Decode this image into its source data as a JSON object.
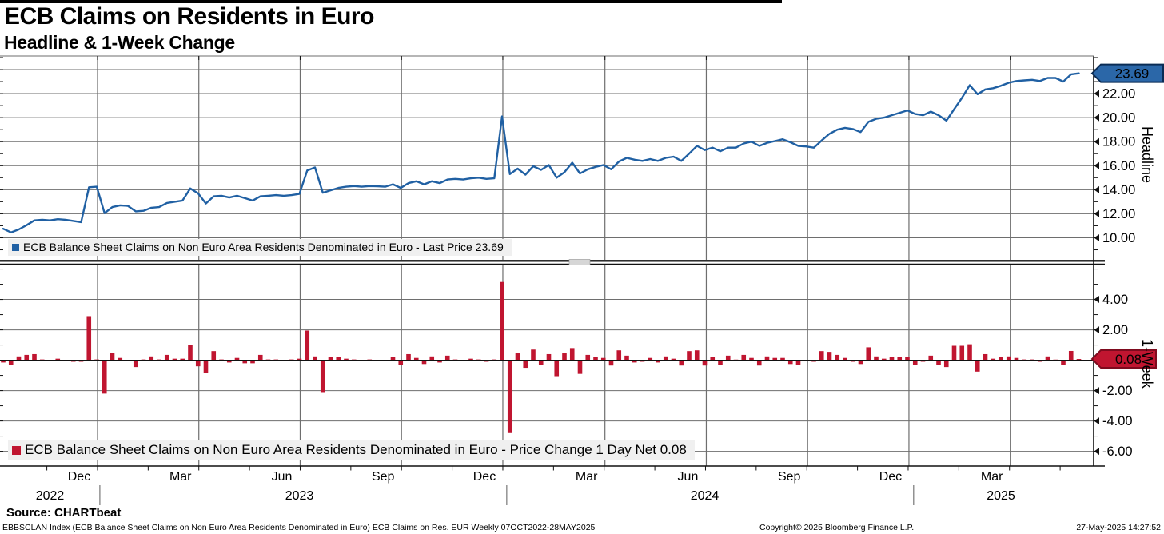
{
  "header": {
    "title": "ECB Claims on Residents in Euro",
    "subtitle": "Headline & 1-Week Change"
  },
  "chart_data": {
    "type": "line+bar",
    "frequency": "Weekly",
    "date_range": "07OCT2022-28MAY2025",
    "x": {
      "quarters": [
        {
          "label": "Dec",
          "week": 12.1
        },
        {
          "label": "Mar",
          "week": 25.1
        },
        {
          "label": "Jun",
          "week": 38.1
        },
        {
          "label": "Sep",
          "week": 51.1
        },
        {
          "label": "Dec",
          "week": 64.1
        },
        {
          "label": "Mar",
          "week": 77.2
        },
        {
          "label": "Jun",
          "week": 90.2
        },
        {
          "label": "Sep",
          "week": 103.2
        },
        {
          "label": "Dec",
          "week": 116.2
        },
        {
          "label": "Mar",
          "week": 129.2
        }
      ],
      "years": [
        {
          "label": "2022",
          "week": 6
        },
        {
          "label": "2023",
          "week": 38
        },
        {
          "label": "2024",
          "week": 90
        },
        {
          "label": "2025",
          "week": 128
        }
      ],
      "year_separators": [
        12.4,
        64.6,
        116.8
      ]
    },
    "panels": [
      {
        "axis_title": "Headline",
        "type": "line",
        "color": "#2060a3",
        "badge_color": "#2b67a8",
        "badge_border": "#0a2c55",
        "last_value_badge": "23.69",
        "legend": "ECB Balance Sheet Claims on Non Euro Area Residents Denominated in Euro - Last Price 23.69",
        "tick_values": [
          22,
          20,
          18,
          16,
          14,
          12,
          10
        ],
        "tick_labels": [
          "22.00",
          "20.00",
          "18.00",
          "16.00",
          "14.00",
          "12.00",
          "10.00"
        ],
        "ylim": [
          8.17,
          25.13
        ],
        "values": [
          10.75,
          10.45,
          10.7,
          11.05,
          11.45,
          11.5,
          11.45,
          11.55,
          11.5,
          11.4,
          11.3,
          14.2,
          14.25,
          12.05,
          12.55,
          12.7,
          12.65,
          12.2,
          12.25,
          12.5,
          12.55,
          12.9,
          13.0,
          13.1,
          14.1,
          13.7,
          12.85,
          13.45,
          13.5,
          13.35,
          13.5,
          13.3,
          13.1,
          13.45,
          13.5,
          13.55,
          13.5,
          13.55,
          13.65,
          15.6,
          15.85,
          13.75,
          13.95,
          14.15,
          14.25,
          14.3,
          14.25,
          14.3,
          14.28,
          14.25,
          14.45,
          14.15,
          14.55,
          14.7,
          14.45,
          14.7,
          14.55,
          14.85,
          14.9,
          14.85,
          14.95,
          15.0,
          14.9,
          14.95,
          20.1,
          15.3,
          15.75,
          15.25,
          15.95,
          15.65,
          16.05,
          15.0,
          15.45,
          16.25,
          15.35,
          15.7,
          15.9,
          16.05,
          15.7,
          16.35,
          16.65,
          16.5,
          16.4,
          16.55,
          16.4,
          16.65,
          16.75,
          16.4,
          17.0,
          17.65,
          17.3,
          17.5,
          17.2,
          17.5,
          17.5,
          17.85,
          18.0,
          17.65,
          17.9,
          18.05,
          18.2,
          17.95,
          17.65,
          17.6,
          17.5,
          18.1,
          18.65,
          19.0,
          19.15,
          19.05,
          18.8,
          19.65,
          19.9,
          20.0,
          20.2,
          20.4,
          20.6,
          20.3,
          20.2,
          20.5,
          20.2,
          19.75,
          20.7,
          21.65,
          22.7,
          21.95,
          22.35,
          22.45,
          22.65,
          22.9,
          23.05,
          23.1,
          23.15,
          23.05,
          23.3,
          23.3,
          23.0,
          23.61,
          23.69
        ]
      },
      {
        "axis_title": "1-Week",
        "type": "bar",
        "color": "#c01530",
        "badge_color": "#c01530",
        "badge_border": "#7e0a1e",
        "last_value_badge": "0.08",
        "legend": "ECB Balance Sheet Claims on Non Euro Area Residents Denominated in Euro - Price Change 1 Day Net 0.08",
        "tick_values": [
          4,
          2,
          -2,
          -4,
          -6
        ],
        "tick_labels": [
          "4.00",
          "2.00",
          "-2.00",
          "-4.00",
          "-6.00"
        ],
        "ylim": [
          -6.97,
          6.24
        ],
        "values": [
          -0.15,
          -0.3,
          0.25,
          0.35,
          0.4,
          0.05,
          -0.05,
          0.1,
          -0.05,
          -0.1,
          -0.1,
          2.9,
          0.05,
          -2.2,
          0.5,
          0.15,
          -0.05,
          -0.45,
          0.05,
          0.25,
          0.05,
          0.35,
          0.1,
          0.1,
          1.0,
          -0.4,
          -0.85,
          0.6,
          0.05,
          -0.15,
          0.15,
          -0.2,
          -0.2,
          0.35,
          0.05,
          0.05,
          -0.05,
          0.05,
          0.1,
          1.95,
          0.25,
          -2.1,
          0.2,
          0.2,
          0.1,
          0.05,
          -0.05,
          0.05,
          -0.02,
          -0.03,
          0.2,
          -0.3,
          0.4,
          0.15,
          -0.25,
          0.25,
          -0.15,
          0.3,
          0.05,
          -0.05,
          0.1,
          0.05,
          -0.1,
          0.05,
          5.15,
          -4.8,
          0.45,
          -0.5,
          0.7,
          -0.3,
          0.4,
          -1.05,
          0.45,
          0.8,
          -0.9,
          0.35,
          0.2,
          0.15,
          -0.35,
          0.65,
          0.3,
          -0.15,
          -0.1,
          0.15,
          -0.15,
          0.25,
          0.1,
          -0.35,
          0.6,
          0.65,
          -0.35,
          0.2,
          -0.3,
          0.3,
          0.0,
          0.35,
          0.15,
          -0.35,
          0.25,
          0.15,
          0.15,
          -0.25,
          -0.3,
          -0.05,
          -0.1,
          0.6,
          0.55,
          0.35,
          0.15,
          -0.1,
          -0.25,
          0.85,
          0.25,
          0.1,
          0.2,
          0.2,
          0.2,
          -0.3,
          -0.1,
          0.3,
          -0.3,
          -0.45,
          0.95,
          0.95,
          1.05,
          -0.75,
          0.4,
          0.1,
          0.2,
          0.25,
          0.15,
          0.05,
          0.05,
          -0.1,
          0.25,
          0.0,
          -0.3,
          0.61,
          0.08
        ]
      }
    ]
  },
  "footer": {
    "source": "Source: CHARTbeat",
    "security_line": "EBBSCLAN Index (ECB Balance Sheet Claims on Non Euro Area Residents Denominated in Euro) ECB Claims on Res. EUR  Weekly 07OCT2022-28MAY2025",
    "copyright": "Copyright© 2025 Bloomberg Finance L.P.",
    "timestamp": "27-May-2025 14:27:52"
  }
}
